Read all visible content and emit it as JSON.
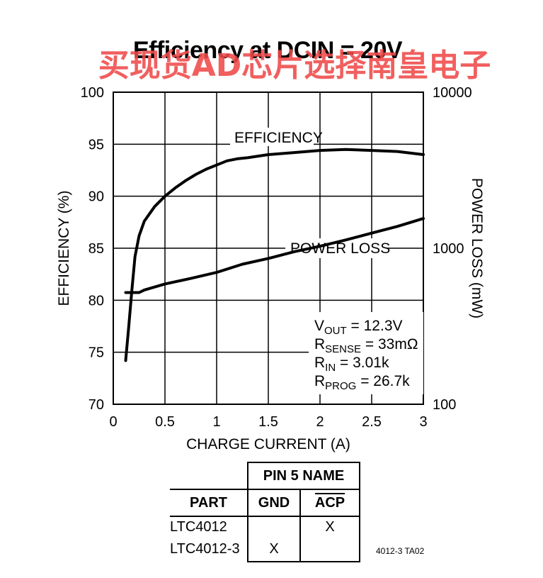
{
  "watermark": "买现货AD芯片选择南皇电子",
  "chart_data": {
    "type": "line",
    "title": "Efficiency at DCIN = 20V",
    "xlabel": "CHARGE CURRENT (A)",
    "ylabel_left": "EFFICIENCY (%)",
    "ylabel_right": "POWER LOSS (mW)",
    "xlim": [
      0,
      3
    ],
    "ylim_left": [
      70,
      100
    ],
    "ylim_right": [
      100,
      10000
    ],
    "right_scale": "log",
    "x_ticks": [
      "0",
      "0.5",
      "1",
      "1.5",
      "2",
      "2.5",
      "3"
    ],
    "y_ticks_left": [
      "70",
      "75",
      "80",
      "85",
      "90",
      "95",
      "100"
    ],
    "y_ticks_right": [
      "100",
      "1000",
      "10000"
    ],
    "grid": true,
    "series": [
      {
        "name": "EFFICIENCY",
        "axis": "left",
        "color": "#000000",
        "points": [
          [
            0.12,
            74.2
          ],
          [
            0.15,
            77.5
          ],
          [
            0.18,
            81.0
          ],
          [
            0.21,
            84.2
          ],
          [
            0.25,
            86.2
          ],
          [
            0.3,
            87.6
          ],
          [
            0.4,
            89.0
          ],
          [
            0.5,
            90.0
          ],
          [
            0.6,
            90.8
          ],
          [
            0.7,
            91.5
          ],
          [
            0.8,
            92.1
          ],
          [
            0.9,
            92.6
          ],
          [
            1.0,
            93.0
          ],
          [
            1.1,
            93.4
          ],
          [
            1.2,
            93.6
          ],
          [
            1.3,
            93.7
          ],
          [
            1.5,
            94.0
          ],
          [
            1.75,
            94.2
          ],
          [
            2.0,
            94.4
          ],
          [
            2.25,
            94.5
          ],
          [
            2.5,
            94.4
          ],
          [
            2.75,
            94.3
          ],
          [
            3.0,
            94.0
          ]
        ]
      },
      {
        "name": "POWER LOSS",
        "axis": "right",
        "color": "#000000",
        "points": [
          [
            0.12,
            520
          ],
          [
            0.25,
            520
          ],
          [
            0.3,
            540
          ],
          [
            0.5,
            590
          ],
          [
            0.75,
            640
          ],
          [
            1.0,
            700
          ],
          [
            1.25,
            790
          ],
          [
            1.5,
            860
          ],
          [
            1.75,
            950
          ],
          [
            2.0,
            1030
          ],
          [
            2.25,
            1130
          ],
          [
            2.5,
            1250
          ],
          [
            2.75,
            1380
          ],
          [
            3.0,
            1550
          ]
        ]
      }
    ],
    "annotations": [
      {
        "text": "EFFICIENCY",
        "series": "EFFICIENCY"
      },
      {
        "text": "POWER LOSS",
        "series": "POWER LOSS"
      }
    ],
    "conditions": [
      {
        "main": "V",
        "sub": "OUT",
        "rest": " = 12.3V"
      },
      {
        "main": "R",
        "sub": "SENSE",
        "rest": " = 33mΩ"
      },
      {
        "main": "R",
        "sub": "IN",
        "rest": " = 3.01k"
      },
      {
        "main": "R",
        "sub": "PROG",
        "rest": " = 26.7k"
      }
    ]
  },
  "table": {
    "group_header": "PIN 5 NAME",
    "col_part": "PART",
    "col_gnd": "GND",
    "col_acp": "ACP",
    "rows": [
      {
        "part": "LTC4012",
        "gnd": "",
        "acp": "X"
      },
      {
        "part": "LTC4012-3",
        "gnd": "X",
        "acp": ""
      }
    ]
  },
  "figure_id": "4012-3 TA02"
}
